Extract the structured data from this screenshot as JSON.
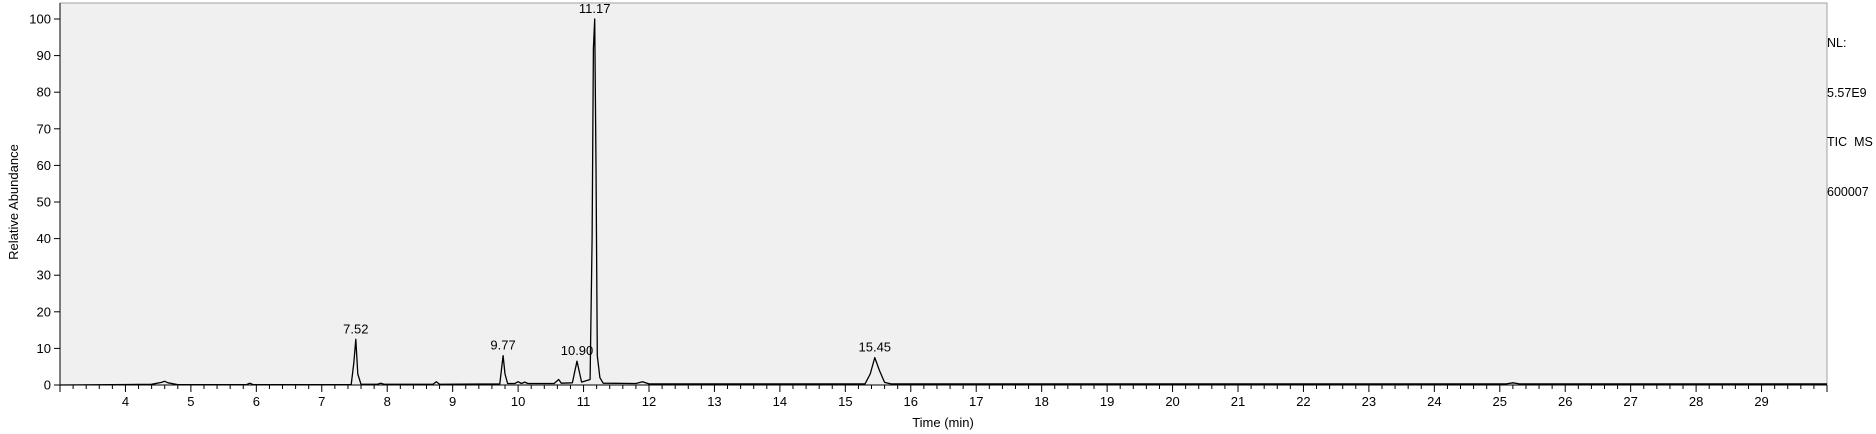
{
  "nl_block": {
    "nl_label": "NL:",
    "nl_value": "5.57E9",
    "trace_label": "TIC  MS",
    "file_id": "600007"
  },
  "chart_data": {
    "type": "line",
    "xlabel": "Time (min)",
    "ylabel": "Relative Abundance",
    "xlim": [
      3.0,
      30.0
    ],
    "ylim": [
      0,
      100
    ],
    "x_ticks": [
      4,
      5,
      6,
      7,
      8,
      9,
      10,
      11,
      12,
      13,
      14,
      15,
      16,
      17,
      18,
      19,
      20,
      21,
      22,
      23,
      24,
      25,
      26,
      27,
      28,
      29
    ],
    "y_ticks": [
      0,
      10,
      20,
      30,
      40,
      50,
      60,
      70,
      80,
      90,
      100
    ],
    "grid": false,
    "line_color": "#000000",
    "series": [
      {
        "x": [
          3.0,
          4.4,
          4.55,
          4.6,
          4.65,
          4.8,
          5.85,
          5.9,
          5.95,
          7.45,
          7.49,
          7.52,
          7.55,
          7.6,
          7.85,
          7.9,
          7.95,
          8.7,
          8.75,
          8.8,
          9.72,
          9.75,
          9.77,
          9.8,
          9.84,
          9.95,
          10.0,
          10.05,
          10.1,
          10.15,
          10.55,
          10.62,
          10.66,
          10.83,
          10.87,
          10.9,
          10.93,
          10.97,
          11.1,
          11.13,
          11.15,
          11.17,
          11.19,
          11.21,
          11.25,
          11.3,
          11.8,
          11.9,
          12.0,
          15.3,
          15.38,
          15.45,
          15.52,
          15.6,
          15.7,
          25.1,
          25.2,
          25.3,
          30.0
        ],
        "y": [
          0,
          0.2,
          0.7,
          1.0,
          0.6,
          0.1,
          0.1,
          0.5,
          0.1,
          0.1,
          6.0,
          12.5,
          3.0,
          0.2,
          0.2,
          0.5,
          0.2,
          0.2,
          0.9,
          0.2,
          0.3,
          5.0,
          8.0,
          3.0,
          0.4,
          0.4,
          0.9,
          0.4,
          0.8,
          0.4,
          0.4,
          1.5,
          0.5,
          0.6,
          4.0,
          6.5,
          4.0,
          0.8,
          1.5,
          40.0,
          92.0,
          100.0,
          60.0,
          8.0,
          2.0,
          0.5,
          0.4,
          0.9,
          0.3,
          0.3,
          3.0,
          7.5,
          4.0,
          0.7,
          0.3,
          0.3,
          0.6,
          0.3,
          0.3
        ]
      }
    ],
    "peak_labels": [
      {
        "x": 7.52,
        "y": 12.5,
        "text": "7.52"
      },
      {
        "x": 9.77,
        "y": 8.0,
        "text": "9.77"
      },
      {
        "x": 10.9,
        "y": 6.5,
        "text": "10.90"
      },
      {
        "x": 11.17,
        "y": 100.0,
        "text": "11.17"
      },
      {
        "x": 15.45,
        "y": 7.5,
        "text": "15.45"
      }
    ]
  }
}
